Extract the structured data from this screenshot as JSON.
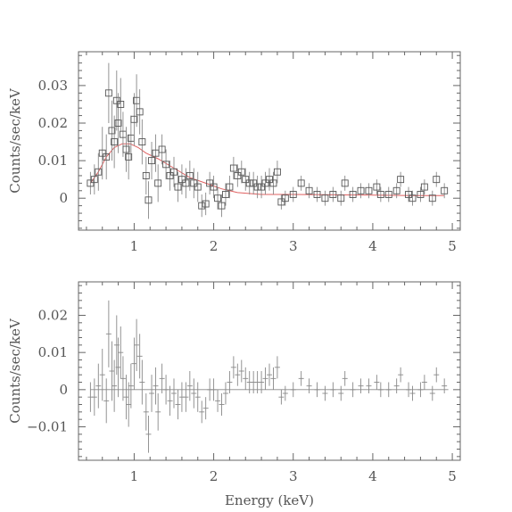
{
  "chart_data": [
    {
      "type": "scatter",
      "panel": "top",
      "xlabel": "",
      "ylabel": "Counts/sec/keV",
      "xlim": [
        0.3,
        5.1
      ],
      "ylim": [
        -0.0085,
        0.039
      ],
      "x_ticks": [
        "1",
        "2",
        "3",
        "4",
        "5"
      ],
      "y_ticks": [
        "0",
        "0.01",
        "0.02",
        "0.03"
      ],
      "grid": false,
      "model_color": "#e06060",
      "series": [
        {
          "marker": "square",
          "points": [
            {
              "x": 0.45,
              "y": 0.004,
              "err": 0.003
            },
            {
              "x": 0.5,
              "y": 0.005,
              "err": 0.004
            },
            {
              "x": 0.55,
              "y": 0.007,
              "err": 0.005
            },
            {
              "x": 0.6,
              "y": 0.012,
              "err": 0.007
            },
            {
              "x": 0.65,
              "y": 0.011,
              "err": 0.006
            },
            {
              "x": 0.68,
              "y": 0.028,
              "err": 0.008
            },
            {
              "x": 0.72,
              "y": 0.018,
              "err": 0.008
            },
            {
              "x": 0.75,
              "y": 0.015,
              "err": 0.007
            },
            {
              "x": 0.78,
              "y": 0.026,
              "err": 0.008
            },
            {
              "x": 0.8,
              "y": 0.02,
              "err": 0.008
            },
            {
              "x": 0.83,
              "y": 0.025,
              "err": 0.007
            },
            {
              "x": 0.86,
              "y": 0.017,
              "err": 0.006
            },
            {
              "x": 0.9,
              "y": 0.013,
              "err": 0.006
            },
            {
              "x": 0.93,
              "y": 0.011,
              "err": 0.006
            },
            {
              "x": 0.96,
              "y": 0.016,
              "err": 0.006
            },
            {
              "x": 1.0,
              "y": 0.021,
              "err": 0.007
            },
            {
              "x": 1.03,
              "y": 0.026,
              "err": 0.007
            },
            {
              "x": 1.07,
              "y": 0.023,
              "err": 0.006
            },
            {
              "x": 1.1,
              "y": 0.015,
              "err": 0.006
            },
            {
              "x": 1.15,
              "y": 0.006,
              "err": 0.005
            },
            {
              "x": 1.18,
              "y": -0.0005,
              "err": 0.005
            },
            {
              "x": 1.22,
              "y": 0.01,
              "err": 0.005
            },
            {
              "x": 1.27,
              "y": 0.012,
              "err": 0.005
            },
            {
              "x": 1.3,
              "y": 0.004,
              "err": 0.005
            },
            {
              "x": 1.35,
              "y": 0.013,
              "err": 0.004
            },
            {
              "x": 1.4,
              "y": 0.009,
              "err": 0.004
            },
            {
              "x": 1.45,
              "y": 0.006,
              "err": 0.004
            },
            {
              "x": 1.5,
              "y": 0.007,
              "err": 0.004
            },
            {
              "x": 1.55,
              "y": 0.003,
              "err": 0.004
            },
            {
              "x": 1.6,
              "y": 0.005,
              "err": 0.004
            },
            {
              "x": 1.65,
              "y": 0.004,
              "err": 0.004
            },
            {
              "x": 1.7,
              "y": 0.006,
              "err": 0.004
            },
            {
              "x": 1.75,
              "y": 0.004,
              "err": 0.004
            },
            {
              "x": 1.8,
              "y": 0.003,
              "err": 0.004
            },
            {
              "x": 1.85,
              "y": -0.002,
              "err": 0.003
            },
            {
              "x": 1.9,
              "y": -0.0015,
              "err": 0.003
            },
            {
              "x": 1.95,
              "y": 0.004,
              "err": 0.003
            },
            {
              "x": 2.0,
              "y": 0.003,
              "err": 0.003
            },
            {
              "x": 2.05,
              "y": 0.0,
              "err": 0.003
            },
            {
              "x": 2.1,
              "y": -0.002,
              "err": 0.003
            },
            {
              "x": 2.15,
              "y": 0.001,
              "err": 0.003
            },
            {
              "x": 2.2,
              "y": 0.003,
              "err": 0.003
            },
            {
              "x": 2.25,
              "y": 0.008,
              "err": 0.003
            },
            {
              "x": 2.3,
              "y": 0.006,
              "err": 0.003
            },
            {
              "x": 2.35,
              "y": 0.007,
              "err": 0.003
            },
            {
              "x": 2.4,
              "y": 0.005,
              "err": 0.003
            },
            {
              "x": 2.45,
              "y": 0.004,
              "err": 0.003
            },
            {
              "x": 2.5,
              "y": 0.004,
              "err": 0.003
            },
            {
              "x": 2.55,
              "y": 0.003,
              "err": 0.003
            },
            {
              "x": 2.6,
              "y": 0.003,
              "err": 0.003
            },
            {
              "x": 2.65,
              "y": 0.004,
              "err": 0.003
            },
            {
              "x": 2.7,
              "y": 0.005,
              "err": 0.003
            },
            {
              "x": 2.75,
              "y": 0.004,
              "err": 0.003
            },
            {
              "x": 2.8,
              "y": 0.007,
              "err": 0.003
            },
            {
              "x": 2.85,
              "y": -0.001,
              "err": 0.002
            },
            {
              "x": 2.9,
              "y": 0.0,
              "err": 0.002
            },
            {
              "x": 3.0,
              "y": 0.001,
              "err": 0.002
            },
            {
              "x": 3.1,
              "y": 0.004,
              "err": 0.002
            },
            {
              "x": 3.2,
              "y": 0.002,
              "err": 0.002
            },
            {
              "x": 3.3,
              "y": 0.001,
              "err": 0.002
            },
            {
              "x": 3.4,
              "y": 0.0,
              "err": 0.002
            },
            {
              "x": 3.5,
              "y": 0.001,
              "err": 0.002
            },
            {
              "x": 3.6,
              "y": 0.0,
              "err": 0.002
            },
            {
              "x": 3.65,
              "y": 0.004,
              "err": 0.002
            },
            {
              "x": 3.75,
              "y": 0.001,
              "err": 0.002
            },
            {
              "x": 3.85,
              "y": 0.002,
              "err": 0.002
            },
            {
              "x": 3.95,
              "y": 0.002,
              "err": 0.002
            },
            {
              "x": 4.05,
              "y": 0.003,
              "err": 0.002
            },
            {
              "x": 4.1,
              "y": 0.001,
              "err": 0.002
            },
            {
              "x": 4.2,
              "y": 0.001,
              "err": 0.002
            },
            {
              "x": 4.3,
              "y": 0.002,
              "err": 0.002
            },
            {
              "x": 4.35,
              "y": 0.005,
              "err": 0.002
            },
            {
              "x": 4.45,
              "y": 0.001,
              "err": 0.002
            },
            {
              "x": 4.5,
              "y": 0.0,
              "err": 0.002
            },
            {
              "x": 4.6,
              "y": 0.001,
              "err": 0.002
            },
            {
              "x": 4.65,
              "y": 0.003,
              "err": 0.002
            },
            {
              "x": 4.75,
              "y": 0.0,
              "err": 0.002
            },
            {
              "x": 4.8,
              "y": 0.005,
              "err": 0.002
            },
            {
              "x": 4.9,
              "y": 0.002,
              "err": 0.002
            }
          ]
        }
      ],
      "model": [
        {
          "x": 0.45,
          "y": 0.004
        },
        {
          "x": 0.55,
          "y": 0.007
        },
        {
          "x": 0.65,
          "y": 0.011
        },
        {
          "x": 0.75,
          "y": 0.0135
        },
        {
          "x": 0.85,
          "y": 0.0145
        },
        {
          "x": 0.95,
          "y": 0.0145
        },
        {
          "x": 1.05,
          "y": 0.0135
        },
        {
          "x": 1.15,
          "y": 0.012
        },
        {
          "x": 1.3,
          "y": 0.0105
        },
        {
          "x": 1.5,
          "y": 0.008
        },
        {
          "x": 1.7,
          "y": 0.0055
        },
        {
          "x": 1.9,
          "y": 0.004
        },
        {
          "x": 2.1,
          "y": 0.0025
        },
        {
          "x": 2.3,
          "y": 0.0015
        },
        {
          "x": 2.6,
          "y": 0.001
        },
        {
          "x": 3.0,
          "y": 0.001
        },
        {
          "x": 3.5,
          "y": 0.0009
        },
        {
          "x": 4.0,
          "y": 0.0008
        },
        {
          "x": 4.5,
          "y": 0.0007
        },
        {
          "x": 4.9,
          "y": 0.0007
        }
      ]
    },
    {
      "type": "scatter",
      "panel": "bottom",
      "xlabel": "Energy (keV)",
      "ylabel": "Counts/sec/keV",
      "xlim": [
        0.3,
        5.1
      ],
      "ylim": [
        -0.019,
        0.029
      ],
      "x_ticks": [
        "1",
        "2",
        "3",
        "4",
        "5"
      ],
      "y_ticks": [
        "−0.01",
        "0",
        "0.01",
        "0.02"
      ],
      "grid": false,
      "zero_line": true,
      "series": [
        {
          "marker": "cross",
          "points": [
            {
              "x": 0.45,
              "y": -0.002,
              "err": 0.004
            },
            {
              "x": 0.5,
              "y": -0.002,
              "err": 0.005
            },
            {
              "x": 0.55,
              "y": 0.001,
              "err": 0.006
            },
            {
              "x": 0.6,
              "y": 0.004,
              "err": 0.007
            },
            {
              "x": 0.65,
              "y": -0.003,
              "err": 0.006
            },
            {
              "x": 0.68,
              "y": 0.015,
              "err": 0.009
            },
            {
              "x": 0.72,
              "y": 0.005,
              "err": 0.008
            },
            {
              "x": 0.75,
              "y": 0.001,
              "err": 0.007
            },
            {
              "x": 0.78,
              "y": 0.012,
              "err": 0.008
            },
            {
              "x": 0.8,
              "y": 0.006,
              "err": 0.008
            },
            {
              "x": 0.83,
              "y": 0.01,
              "err": 0.007
            },
            {
              "x": 0.86,
              "y": 0.003,
              "err": 0.006
            },
            {
              "x": 0.9,
              "y": -0.002,
              "err": 0.006
            },
            {
              "x": 0.93,
              "y": -0.004,
              "err": 0.006
            },
            {
              "x": 0.96,
              "y": 0.001,
              "err": 0.006
            },
            {
              "x": 1.0,
              "y": 0.007,
              "err": 0.007
            },
            {
              "x": 1.03,
              "y": 0.012,
              "err": 0.007
            },
            {
              "x": 1.07,
              "y": 0.009,
              "err": 0.006
            },
            {
              "x": 1.1,
              "y": 0.002,
              "err": 0.006
            },
            {
              "x": 1.15,
              "y": -0.006,
              "err": 0.005
            },
            {
              "x": 1.18,
              "y": -0.012,
              "err": 0.005
            },
            {
              "x": 1.22,
              "y": -0.001,
              "err": 0.005
            },
            {
              "x": 1.27,
              "y": 0.001,
              "err": 0.005
            },
            {
              "x": 1.3,
              "y": -0.006,
              "err": 0.005
            },
            {
              "x": 1.35,
              "y": 0.003,
              "err": 0.004
            },
            {
              "x": 1.4,
              "y": 0.0,
              "err": 0.004
            },
            {
              "x": 1.45,
              "y": -0.003,
              "err": 0.004
            },
            {
              "x": 1.5,
              "y": -0.001,
              "err": 0.004
            },
            {
              "x": 1.55,
              "y": -0.004,
              "err": 0.004
            },
            {
              "x": 1.6,
              "y": -0.002,
              "err": 0.004
            },
            {
              "x": 1.65,
              "y": -0.002,
              "err": 0.004
            },
            {
              "x": 1.7,
              "y": 0.001,
              "err": 0.004
            },
            {
              "x": 1.75,
              "y": -0.001,
              "err": 0.004
            },
            {
              "x": 1.8,
              "y": -0.002,
              "err": 0.004
            },
            {
              "x": 1.85,
              "y": -0.006,
              "err": 0.003
            },
            {
              "x": 1.9,
              "y": -0.005,
              "err": 0.003
            },
            {
              "x": 1.95,
              "y": 0.0,
              "err": 0.003
            },
            {
              "x": 2.0,
              "y": 0.0,
              "err": 0.003
            },
            {
              "x": 2.05,
              "y": -0.003,
              "err": 0.003
            },
            {
              "x": 2.1,
              "y": -0.004,
              "err": 0.003
            },
            {
              "x": 2.15,
              "y": -0.001,
              "err": 0.003
            },
            {
              "x": 2.2,
              "y": 0.002,
              "err": 0.003
            },
            {
              "x": 2.25,
              "y": 0.006,
              "err": 0.003
            },
            {
              "x": 2.3,
              "y": 0.004,
              "err": 0.003
            },
            {
              "x": 2.35,
              "y": 0.005,
              "err": 0.003
            },
            {
              "x": 2.4,
              "y": 0.003,
              "err": 0.003
            },
            {
              "x": 2.45,
              "y": 0.002,
              "err": 0.003
            },
            {
              "x": 2.5,
              "y": 0.002,
              "err": 0.003
            },
            {
              "x": 2.55,
              "y": 0.002,
              "err": 0.003
            },
            {
              "x": 2.6,
              "y": 0.002,
              "err": 0.003
            },
            {
              "x": 2.65,
              "y": 0.003,
              "err": 0.003
            },
            {
              "x": 2.7,
              "y": 0.004,
              "err": 0.003
            },
            {
              "x": 2.75,
              "y": 0.003,
              "err": 0.003
            },
            {
              "x": 2.8,
              "y": 0.006,
              "err": 0.003
            },
            {
              "x": 2.85,
              "y": -0.002,
              "err": 0.002
            },
            {
              "x": 2.9,
              "y": -0.001,
              "err": 0.002
            },
            {
              "x": 3.0,
              "y": 0.0,
              "err": 0.002
            },
            {
              "x": 3.1,
              "y": 0.003,
              "err": 0.002
            },
            {
              "x": 3.2,
              "y": 0.001,
              "err": 0.002
            },
            {
              "x": 3.3,
              "y": 0.0,
              "err": 0.002
            },
            {
              "x": 3.4,
              "y": -0.001,
              "err": 0.002
            },
            {
              "x": 3.5,
              "y": 0.0,
              "err": 0.002
            },
            {
              "x": 3.6,
              "y": -0.001,
              "err": 0.002
            },
            {
              "x": 3.65,
              "y": 0.003,
              "err": 0.002
            },
            {
              "x": 3.75,
              "y": 0.0,
              "err": 0.002
            },
            {
              "x": 3.85,
              "y": 0.001,
              "err": 0.002
            },
            {
              "x": 3.95,
              "y": 0.001,
              "err": 0.002
            },
            {
              "x": 4.05,
              "y": 0.002,
              "err": 0.002
            },
            {
              "x": 4.1,
              "y": 0.0,
              "err": 0.002
            },
            {
              "x": 4.2,
              "y": 0.0,
              "err": 0.002
            },
            {
              "x": 4.3,
              "y": 0.001,
              "err": 0.002
            },
            {
              "x": 4.35,
              "y": 0.004,
              "err": 0.002
            },
            {
              "x": 4.45,
              "y": 0.0,
              "err": 0.002
            },
            {
              "x": 4.5,
              "y": -0.001,
              "err": 0.002
            },
            {
              "x": 4.6,
              "y": 0.0,
              "err": 0.002
            },
            {
              "x": 4.65,
              "y": 0.002,
              "err": 0.002
            },
            {
              "x": 4.75,
              "y": -0.001,
              "err": 0.002
            },
            {
              "x": 4.8,
              "y": 0.004,
              "err": 0.002
            },
            {
              "x": 4.9,
              "y": 0.001,
              "err": 0.002
            }
          ]
        }
      ]
    }
  ]
}
